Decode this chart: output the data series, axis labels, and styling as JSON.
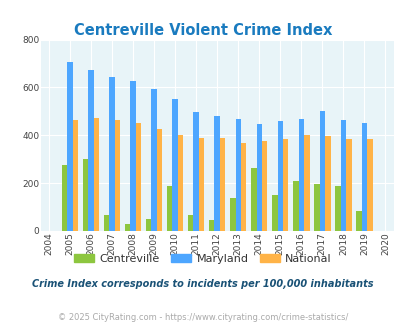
{
  "title": "Centreville Violent Crime Index",
  "years": [
    2004,
    2005,
    2006,
    2007,
    2008,
    2009,
    2010,
    2011,
    2012,
    2013,
    2014,
    2015,
    2016,
    2017,
    2018,
    2019,
    2020
  ],
  "centreville": [
    0,
    275,
    300,
    65,
    28,
    52,
    190,
    68,
    47,
    137,
    263,
    152,
    210,
    195,
    190,
    85,
    0
  ],
  "maryland": [
    0,
    708,
    675,
    642,
    625,
    595,
    550,
    498,
    480,
    468,
    448,
    458,
    470,
    500,
    465,
    450,
    0
  ],
  "national": [
    0,
    465,
    472,
    465,
    452,
    428,
    400,
    390,
    390,
    368,
    378,
    383,
    400,
    398,
    383,
    383,
    0
  ],
  "bar_width": 0.26,
  "ylim": [
    0,
    800
  ],
  "yticks": [
    0,
    200,
    400,
    600,
    800
  ],
  "color_centreville": "#8dc63f",
  "color_maryland": "#4da6ff",
  "color_national": "#ffb347",
  "plot_bg": "#e8f4f8",
  "fig_bg": "#ffffff",
  "title_color": "#1a7bbf",
  "title_fontsize": 10.5,
  "legend_labels": [
    "Centreville",
    "Maryland",
    "National"
  ],
  "note_text": "Crime Index corresponds to incidents per 100,000 inhabitants",
  "footer_text": "© 2025 CityRating.com - https://www.cityrating.com/crime-statistics/",
  "note_color": "#1a5276",
  "footer_color": "#aaaaaa"
}
